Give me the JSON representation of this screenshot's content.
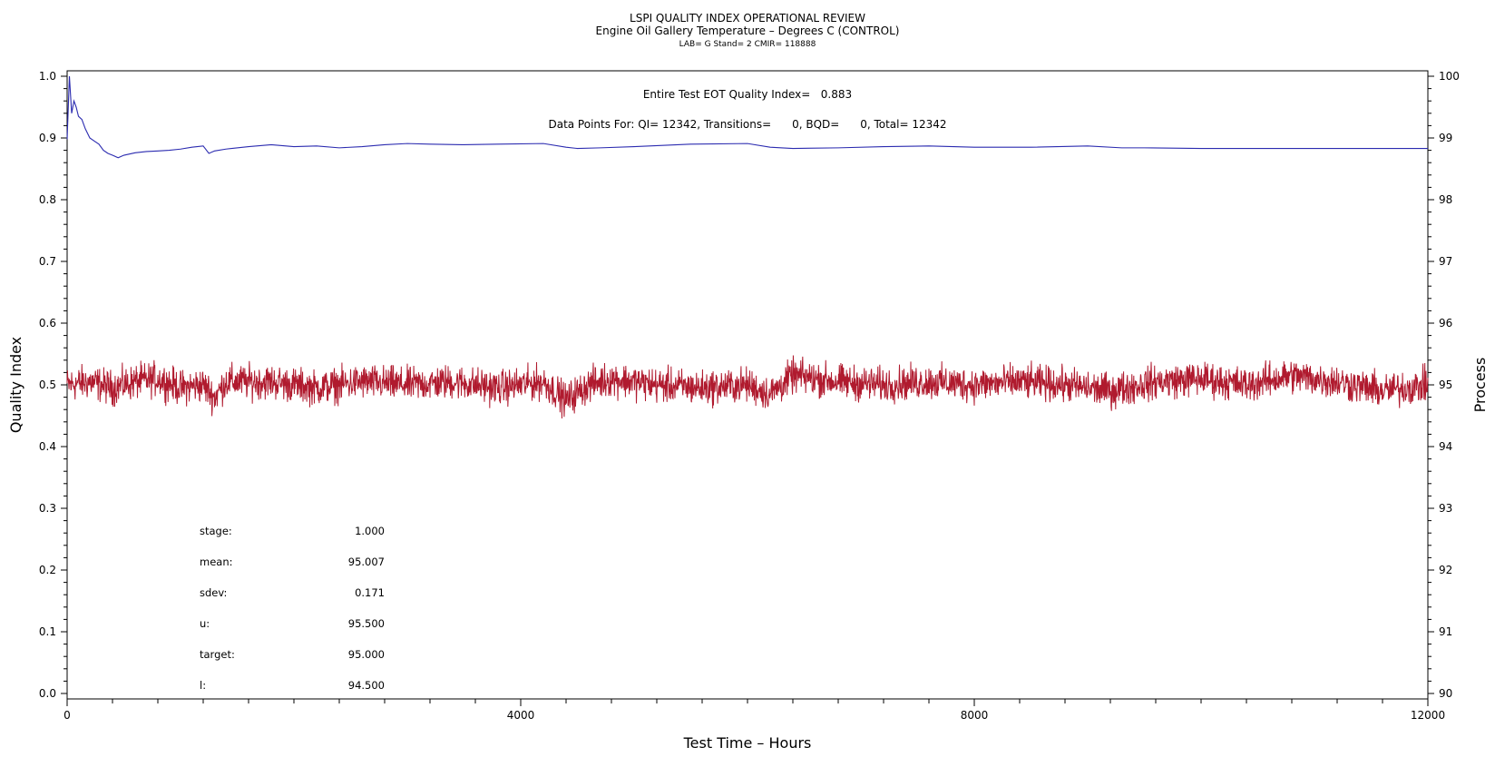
{
  "titles": {
    "main": "LSPI QUALITY INDEX OPERATIONAL REVIEW",
    "sub": "Engine Oil Gallery Temperature – Degrees C (CONTROL)",
    "small": "LAB= G Stand= 2 CMIR= 118888"
  },
  "annotations": {
    "quality_index": "Entire Test EOT Quality Index=   0.883",
    "data_points": "Data Points For: QI= 12342, Transitions=      0, BQD=      0, Total= 12342"
  },
  "stats": [
    {
      "label": "stage:",
      "value": "1.000"
    },
    {
      "label": "mean:",
      "value": "95.007"
    },
    {
      "label": "sdev:",
      "value": "0.171"
    },
    {
      "label": "u:",
      "value": "95.500"
    },
    {
      "label": "target:",
      "value": "95.000"
    },
    {
      "label": "l:",
      "value": "94.500"
    }
  ],
  "colors": {
    "quality_index_line": "#2b2bb0",
    "process_line": "#b01a2e"
  },
  "chart_data": {
    "type": "line",
    "title": "LSPI QUALITY INDEX OPERATIONAL REVIEW",
    "subtitle": "Engine Oil Gallery Temperature – Degrees C (CONTROL)",
    "xlabel": "Test Time – Hours",
    "ylabel_left": "Quality Index",
    "ylabel_right": "Process",
    "xlim": [
      0,
      12000
    ],
    "ylim_left": [
      0.0,
      1.0
    ],
    "ylim_right": [
      90,
      100
    ],
    "x_ticks": [
      0,
      4000,
      8000,
      12000
    ],
    "y_left_ticks": [
      "0.0",
      "0.1",
      "0.2",
      "0.3",
      "0.4",
      "0.5",
      "0.6",
      "0.7",
      "0.8",
      "0.9",
      "1.0"
    ],
    "y_right_ticks": [
      "90",
      "91",
      "92",
      "93",
      "94",
      "95",
      "96",
      "97",
      "98",
      "99",
      "100"
    ],
    "grid": false,
    "series": [
      {
        "axis": "left",
        "x": [
          0,
          20,
          40,
          60,
          80,
          100,
          130,
          160,
          200,
          240,
          280,
          320,
          360,
          400,
          450,
          500,
          600,
          700,
          800,
          900,
          1000,
          1100,
          1200,
          1250,
          1300,
          1400,
          1600,
          1800,
          2000,
          2200,
          2400,
          2600,
          2800,
          3000,
          3200,
          3500,
          3800,
          4200,
          4400,
          4500,
          4700,
          5000,
          5500,
          6000,
          6200,
          6400,
          6800,
          7200,
          7600,
          8000,
          8500,
          9000,
          9300,
          9500,
          10000,
          10500,
          11000,
          11500,
          12000
        ],
        "y": [
          0.898,
          1.0,
          0.94,
          0.96,
          0.95,
          0.935,
          0.93,
          0.915,
          0.9,
          0.895,
          0.89,
          0.88,
          0.875,
          0.872,
          0.868,
          0.872,
          0.876,
          0.878,
          0.879,
          0.88,
          0.882,
          0.885,
          0.887,
          0.875,
          0.879,
          0.882,
          0.886,
          0.889,
          0.886,
          0.887,
          0.884,
          0.886,
          0.889,
          0.891,
          0.89,
          0.889,
          0.89,
          0.891,
          0.885,
          0.883,
          0.884,
          0.886,
          0.89,
          0.891,
          0.885,
          0.883,
          0.884,
          0.886,
          0.887,
          0.885,
          0.885,
          0.887,
          0.884,
          0.884,
          0.883,
          0.883,
          0.883,
          0.883,
          0.883
        ]
      },
      {
        "axis": "right",
        "x": [
          0,
          200,
          400,
          600,
          800,
          1000,
          1200,
          1300,
          1400,
          1800,
          2200,
          2600,
          3000,
          3400,
          3800,
          4200,
          4400,
          4600,
          4800,
          5200,
          5600,
          6000,
          6200,
          6400,
          6800,
          7200,
          7600,
          8000,
          8400,
          8800,
          9200,
          9600,
          10000,
          10400,
          10800,
          11200,
          11600,
          12000
        ],
        "y": [
          95.0,
          95.05,
          94.95,
          95.05,
          95.1,
          94.95,
          95.0,
          94.8,
          95.05,
          95.05,
          94.95,
          95.05,
          95.0,
          95.05,
          94.95,
          95.05,
          94.75,
          95.0,
          95.1,
          95.0,
          94.95,
          95.0,
          94.85,
          95.15,
          95.05,
          95.0,
          95.05,
          95.0,
          95.05,
          95.0,
          94.9,
          95.05,
          95.1,
          95.0,
          95.15,
          95.05,
          94.9,
          95.0
        ],
        "std": 0.171
      }
    ]
  }
}
